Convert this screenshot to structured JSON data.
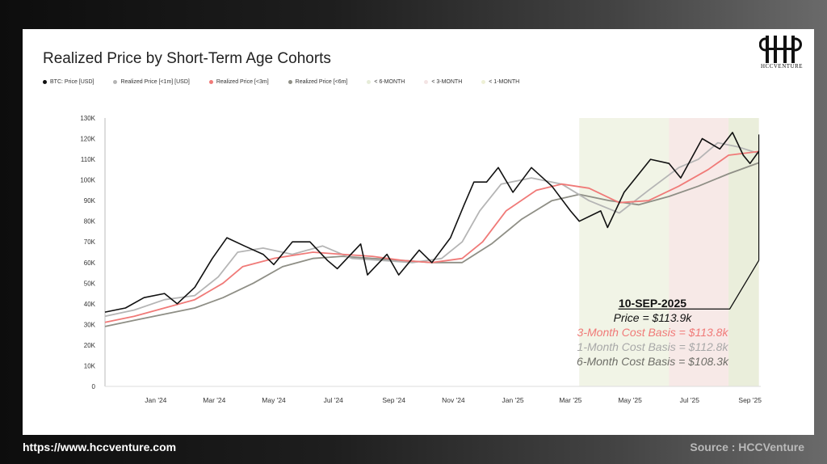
{
  "title": "Realized Price by Short-Term Age Cohorts",
  "legend": [
    {
      "label": "BTC: Price [USD]",
      "color": "#111111"
    },
    {
      "label": "Realized Price [<1m] [USD]",
      "color": "#b5b5b5"
    },
    {
      "label": "Realized Price [<3m]",
      "color": "#f07a78"
    },
    {
      "label": "Realized Price [<6m]",
      "color": "#8f8f86"
    },
    {
      "label": "< 6-MONTH",
      "color": "#e6ecd8"
    },
    {
      "label": "< 3-MONTH",
      "color": "#f3e4e4"
    },
    {
      "label": "< 1-MONTH",
      "color": "#eef0d6"
    }
  ],
  "logo": {
    "text": "HCCVENTURE"
  },
  "annotation": {
    "date": "10-SEP-2025",
    "price": "Price = $113.9k",
    "m3": "3-Month Cost Basis = $113.8k",
    "m1": "1-Month Cost Basis = $112.8k",
    "m6": "6-Month Cost Basis =  $108.3k"
  },
  "footer": {
    "url": "https://www.hccventure.com",
    "source": "Source : HCCVenture"
  },
  "chart_data": {
    "type": "line",
    "ylim": [
      0,
      130000
    ],
    "y_ticks": [
      "0",
      "10K",
      "20K",
      "30K",
      "40K",
      "50K",
      "60K",
      "70K",
      "80K",
      "90K",
      "100K",
      "110K",
      "120K",
      "130K"
    ],
    "x_ticks": [
      "Jan '24",
      "Mar '24",
      "May '24",
      "Jul '24",
      "Sep '24",
      "Nov '24",
      "Jan '25",
      "Mar '25",
      "May '25",
      "Jul '25",
      "Sep '25"
    ],
    "x_tick_dates": [
      "2024-01-01",
      "2024-03-01",
      "2024-05-01",
      "2024-07-01",
      "2024-09-01",
      "2024-11-01",
      "2025-01-01",
      "2025-03-01",
      "2025-05-01",
      "2025-07-01",
      "2025-09-01"
    ],
    "x_range": [
      "2023-11-10",
      "2025-09-12"
    ],
    "shaded_regions": [
      {
        "label": "< 6-MONTH",
        "start": "2025-03-10",
        "end": "2025-09-10",
        "color": "#eef2e2"
      },
      {
        "label": "< 3-MONTH",
        "start": "2025-06-10",
        "end": "2025-09-10",
        "color": "#f8e6e6"
      },
      {
        "label": "< 1-MONTH",
        "start": "2025-08-10",
        "end": "2025-09-10",
        "color": "#e7efd8"
      }
    ],
    "series": [
      {
        "name": "BTC: Price [USD]",
        "color": "#111111",
        "dates": [
          "2023-11-10",
          "2023-12-01",
          "2023-12-20",
          "2024-01-10",
          "2024-01-23",
          "2024-02-10",
          "2024-02-28",
          "2024-03-14",
          "2024-04-01",
          "2024-04-20",
          "2024-05-01",
          "2024-05-20",
          "2024-06-07",
          "2024-06-25",
          "2024-07-05",
          "2024-07-29",
          "2024-08-05",
          "2024-08-25",
          "2024-09-06",
          "2024-09-27",
          "2024-10-10",
          "2024-10-29",
          "2024-11-12",
          "2024-11-22",
          "2024-12-05",
          "2024-12-17",
          "2025-01-01",
          "2025-01-20",
          "2025-02-10",
          "2025-03-01",
          "2025-03-10",
          "2025-04-01",
          "2025-04-08",
          "2025-04-25",
          "2025-05-22",
          "2025-06-10",
          "2025-06-22",
          "2025-07-14",
          "2025-08-01",
          "2025-08-14",
          "2025-08-25",
          "2025-09-01",
          "2025-09-10"
        ],
        "values": [
          36000,
          38000,
          43000,
          45000,
          40000,
          48000,
          62000,
          72000,
          68000,
          64000,
          59000,
          70000,
          70000,
          61000,
          57000,
          69000,
          54000,
          64000,
          54000,
          66000,
          60000,
          72000,
          88000,
          99000,
          99000,
          106000,
          94000,
          106000,
          97000,
          85000,
          80000,
          85000,
          77000,
          94000,
          110000,
          108000,
          101000,
          120000,
          115000,
          123000,
          112000,
          108000,
          113900
        ]
      },
      {
        "name": "Realized Price [<1m] [USD]",
        "color": "#b5b5b5",
        "dates": [
          "2023-11-10",
          "2023-12-10",
          "2024-01-10",
          "2024-02-10",
          "2024-03-05",
          "2024-03-25",
          "2024-04-20",
          "2024-05-20",
          "2024-06-20",
          "2024-07-20",
          "2024-08-20",
          "2024-09-20",
          "2024-10-20",
          "2024-11-10",
          "2024-11-28",
          "2024-12-20",
          "2025-01-20",
          "2025-02-20",
          "2025-03-20",
          "2025-04-20",
          "2025-05-20",
          "2025-06-20",
          "2025-07-10",
          "2025-07-30",
          "2025-08-20",
          "2025-09-10"
        ],
        "values": [
          34000,
          37000,
          42000,
          44000,
          53000,
          65000,
          67000,
          64000,
          68000,
          62000,
          61000,
          60000,
          62000,
          70000,
          85000,
          98000,
          101000,
          98000,
          90000,
          84000,
          95000,
          106000,
          110000,
          118000,
          116000,
          112800
        ]
      },
      {
        "name": "Realized Price [<3m]",
        "color": "#f07a78",
        "dates": [
          "2023-11-10",
          "2023-12-10",
          "2024-01-10",
          "2024-02-10",
          "2024-03-10",
          "2024-03-30",
          "2024-05-01",
          "2024-06-10",
          "2024-07-10",
          "2024-08-10",
          "2024-09-10",
          "2024-10-10",
          "2024-11-10",
          "2024-12-01",
          "2024-12-25",
          "2025-01-25",
          "2025-02-20",
          "2025-03-20",
          "2025-04-20",
          "2025-05-20",
          "2025-06-20",
          "2025-07-20",
          "2025-08-10",
          "2025-09-10"
        ],
        "values": [
          31000,
          34000,
          38000,
          42000,
          50000,
          58000,
          62000,
          65000,
          64000,
          63000,
          61000,
          60000,
          62000,
          70000,
          85000,
          95000,
          98000,
          96000,
          89000,
          90000,
          97000,
          105000,
          112000,
          113800
        ]
      },
      {
        "name": "Realized Price [<6m]",
        "color": "#8f8f86",
        "dates": [
          "2023-11-10",
          "2023-12-10",
          "2024-01-10",
          "2024-02-10",
          "2024-03-10",
          "2024-04-10",
          "2024-05-10",
          "2024-06-10",
          "2024-07-10",
          "2024-08-10",
          "2024-09-10",
          "2024-10-10",
          "2024-11-10",
          "2024-12-10",
          "2025-01-10",
          "2025-02-10",
          "2025-03-10",
          "2025-04-10",
          "2025-05-10",
          "2025-06-10",
          "2025-07-10",
          "2025-08-10",
          "2025-09-10"
        ],
        "values": [
          29000,
          32000,
          35000,
          38000,
          43000,
          50000,
          58000,
          62000,
          63000,
          62000,
          61000,
          60000,
          60000,
          69000,
          81000,
          90000,
          93000,
          90000,
          88000,
          92000,
          97000,
          103000,
          108300
        ]
      }
    ]
  }
}
